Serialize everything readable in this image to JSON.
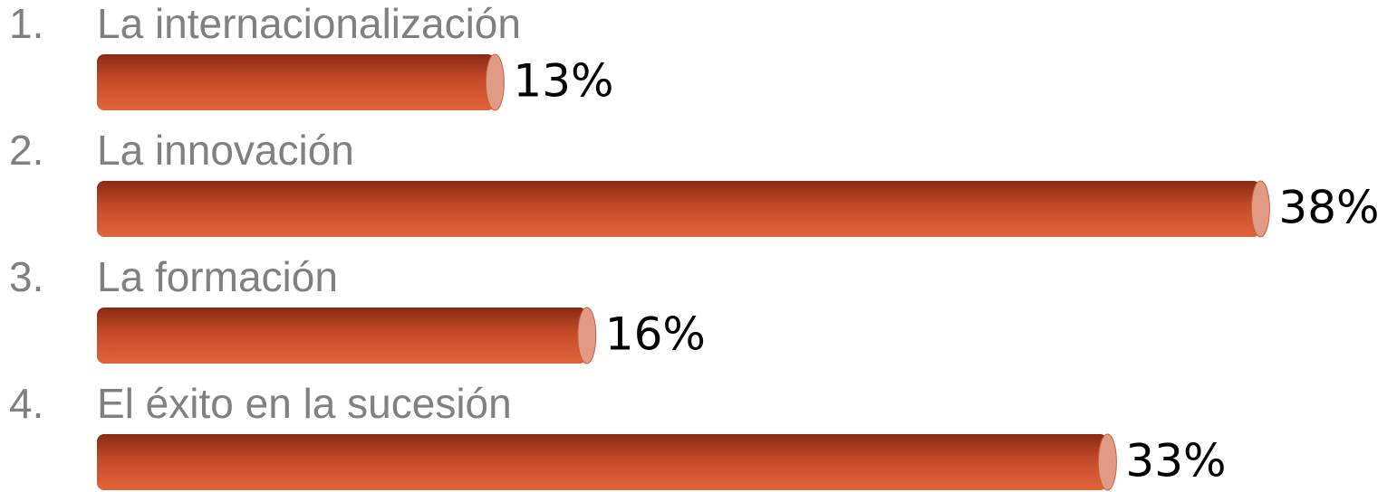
{
  "chart_data": {
    "type": "bar",
    "orientation": "horizontal",
    "numbers": [
      "1.",
      "2.",
      "3.",
      "4."
    ],
    "categories": [
      "La internacionalización",
      "La innovación",
      "La formación",
      "El éxito en la sucesión"
    ],
    "values": [
      13,
      38,
      16,
      33
    ],
    "value_labels": [
      "13%",
      "38%",
      "16%",
      "33%"
    ],
    "color": "#d0512e"
  }
}
